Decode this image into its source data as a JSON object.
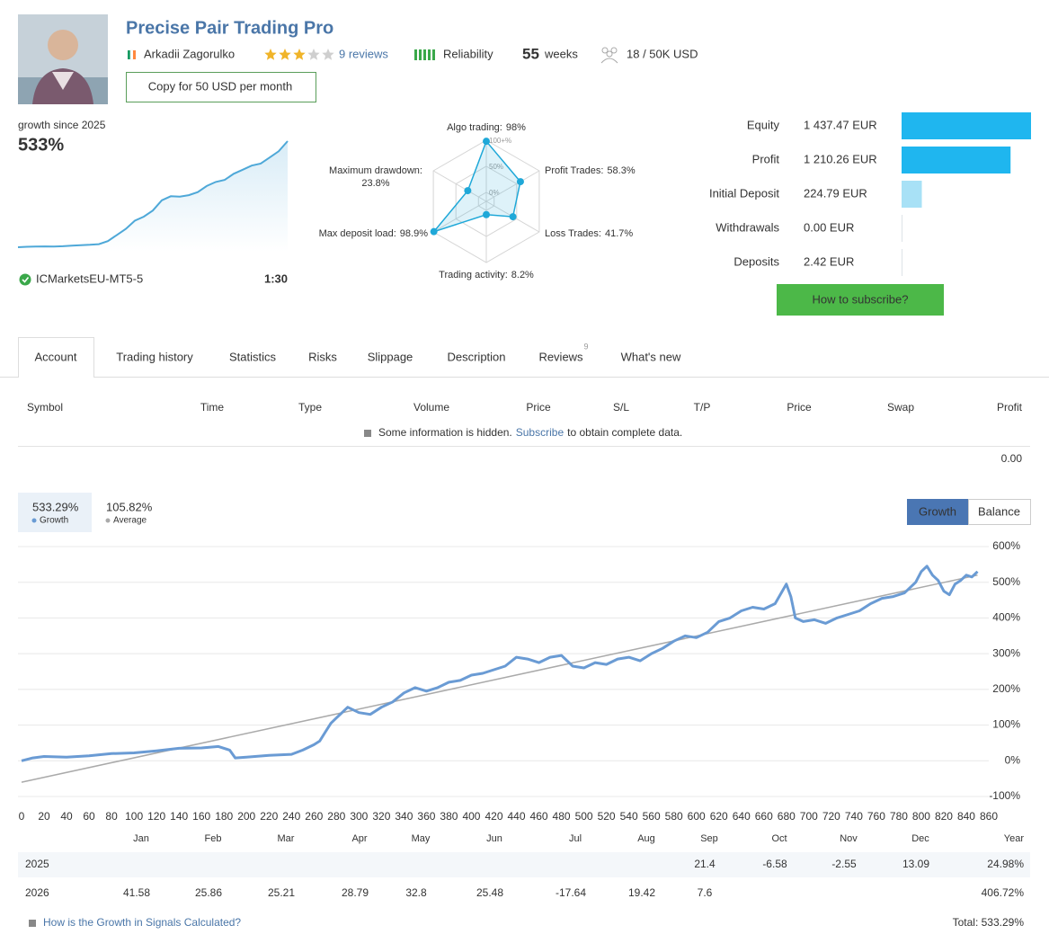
{
  "header": {
    "title": "Precise Pair Trading Pro",
    "author": "Arkadii Zagorulko",
    "rating": 3,
    "rating_max": 5,
    "reviews": "9 reviews",
    "reliability_level": 5,
    "reliability": "Reliability",
    "weeks_value": "55",
    "weeks": "weeks",
    "subscribers": "18 / 50K USD",
    "copy_button": "Copy for 50 USD per month"
  },
  "summary": {
    "growth_label": "growth since 2025",
    "growth_value": "533%",
    "server": "ICMarketsEU-MT5-5",
    "leverage": "1:30",
    "subscribe_button": "How to subscribe?"
  },
  "tabs": {
    "items": [
      "Account",
      "Trading history",
      "Statistics",
      "Risks",
      "Slippage",
      "Description",
      "Reviews",
      "What's new"
    ],
    "reviews_badge": "9",
    "active": 0
  },
  "table": {
    "headers": [
      "Symbol",
      "Time",
      "Type",
      "Volume",
      "Price",
      "S/L",
      "T/P",
      "Price",
      "Swap",
      "Profit"
    ],
    "notice_before": "Some information is hidden.",
    "notice_link": "Subscribe",
    "notice_after": "to obtain complete data.",
    "total_profit": "0.00"
  },
  "chart_data": [
    {
      "type": "sparkline",
      "color": "#4ea8d8",
      "values": [
        0,
        2,
        3,
        4,
        3,
        5,
        8,
        10,
        12,
        15,
        30,
        60,
        90,
        130,
        150,
        180,
        230,
        250,
        248,
        255,
        270,
        300,
        320,
        330,
        360,
        380,
        400,
        410,
        440,
        470,
        520
      ]
    },
    {
      "type": "radar",
      "color": "#1fa8d8",
      "categories": [
        "Algo trading:",
        "Profit Trades:",
        "Loss Trades:",
        "Trading activity:",
        "Max deposit load:",
        "Maximum drawdown:"
      ],
      "values": [
        98,
        58.3,
        41.7,
        8.2,
        98.9,
        23.8
      ],
      "value_labels": [
        "98%",
        "58.3%",
        "41.7%",
        "8.2%",
        "98.9%",
        "23.8%"
      ],
      "rlim": [
        0,
        100
      ],
      "rticks": [
        {
          "value": 100,
          "label": "100+%"
        },
        {
          "value": 50,
          "label": "50%"
        },
        {
          "value": 0,
          "label": "0%"
        }
      ]
    },
    {
      "type": "hbar",
      "categories": [
        "Equity",
        "Profit",
        "Initial Deposit",
        "Withdrawals",
        "Deposits"
      ],
      "values": [
        1437.47,
        1210.26,
        224.79,
        0,
        2.42
      ],
      "value_labels": [
        "1 437.47 EUR",
        "1 210.26 EUR",
        "224.79 EUR",
        "0.00 EUR",
        "2.42 EUR"
      ],
      "colors": [
        "#1fb6ef",
        "#1fb6ef",
        "#a8e1f6",
        "#dde3e8",
        "#dde3e8"
      ]
    },
    {
      "type": "line",
      "legend": [
        {
          "value_label": "533.29%",
          "name": "Growth"
        },
        {
          "value_label": "105.82%",
          "name": "Average"
        }
      ],
      "buttons": [
        "Growth",
        "Balance"
      ],
      "active_button": 0,
      "series": [
        {
          "name": "Growth",
          "color": "#6a9bd4",
          "x": [
            0,
            10,
            20,
            40,
            60,
            80,
            100,
            120,
            140,
            160,
            175,
            185,
            190,
            200,
            220,
            240,
            250,
            260,
            265,
            270,
            275,
            280,
            290,
            300,
            310,
            320,
            330,
            340,
            350,
            360,
            370,
            380,
            390,
            400,
            410,
            420,
            430,
            440,
            450,
            460,
            470,
            480,
            490,
            500,
            510,
            520,
            530,
            540,
            550,
            560,
            570,
            580,
            590,
            600,
            610,
            620,
            630,
            640,
            650,
            660,
            670,
            680,
            684,
            688,
            695,
            705,
            715,
            725,
            735,
            745,
            755,
            765,
            775,
            785,
            795,
            800,
            805,
            810,
            815,
            820,
            825,
            830,
            835,
            840,
            845,
            850
          ],
          "values": [
            0,
            8,
            12,
            10,
            14,
            20,
            22,
            28,
            35,
            36,
            40,
            30,
            8,
            10,
            15,
            18,
            30,
            45,
            55,
            80,
            105,
            120,
            150,
            135,
            130,
            150,
            165,
            190,
            205,
            195,
            205,
            220,
            225,
            240,
            245,
            255,
            265,
            290,
            285,
            275,
            290,
            295,
            265,
            260,
            275,
            270,
            285,
            290,
            280,
            300,
            315,
            335,
            350,
            345,
            360,
            390,
            400,
            420,
            430,
            425,
            440,
            495,
            460,
            400,
            390,
            395,
            385,
            400,
            410,
            420,
            440,
            455,
            460,
            470,
            500,
            530,
            545,
            520,
            505,
            475,
            465,
            495,
            505,
            520,
            515,
            530
          ]
        },
        {
          "name": "Average",
          "color": "#aaaaaa",
          "x": [
            0,
            850
          ],
          "values": [
            -60,
            520
          ]
        }
      ],
      "xlim": [
        0,
        860
      ],
      "xticks": [
        0,
        20,
        40,
        60,
        80,
        100,
        120,
        140,
        160,
        180,
        200,
        220,
        240,
        260,
        280,
        300,
        320,
        340,
        360,
        380,
        400,
        420,
        440,
        460,
        480,
        500,
        520,
        540,
        560,
        580,
        600,
        620,
        640,
        660,
        680,
        700,
        720,
        740,
        760,
        780,
        800,
        820,
        840,
        860
      ],
      "ylim": [
        -100,
        600
      ],
      "yticks": [
        {
          "value": 600,
          "label": "600%"
        },
        {
          "value": 500,
          "label": "500%"
        },
        {
          "value": 400,
          "label": "400%"
        },
        {
          "value": 300,
          "label": "300%"
        },
        {
          "value": 200,
          "label": "200%"
        },
        {
          "value": 100,
          "label": "100%"
        },
        {
          "value": 0,
          "label": "0%"
        },
        {
          "value": -100,
          "label": "-100%"
        }
      ],
      "grid": true
    }
  ],
  "monthly_table": {
    "months": [
      "Jan",
      "Feb",
      "Mar",
      "Apr",
      "May",
      "Jun",
      "Jul",
      "Aug",
      "Sep",
      "Oct",
      "Nov",
      "Dec"
    ],
    "year_header": "Year",
    "positive_color": "#2b6aa0",
    "negative_color": "#c0552e",
    "rows": [
      {
        "year": "2025",
        "values": [
          null,
          null,
          null,
          null,
          null,
          null,
          null,
          null,
          21.4,
          -6.58,
          -2.55,
          13.09
        ],
        "total": "24.98%"
      },
      {
        "year": "2026",
        "values": [
          41.58,
          25.86,
          25.21,
          28.79,
          32.8,
          25.48,
          -17.64,
          19.42,
          7.6,
          null,
          null,
          null
        ],
        "total": "406.72%"
      }
    ],
    "footer_link": "How is the Growth in Signals Calculated?",
    "grand_total": "Total: 533.29%"
  }
}
